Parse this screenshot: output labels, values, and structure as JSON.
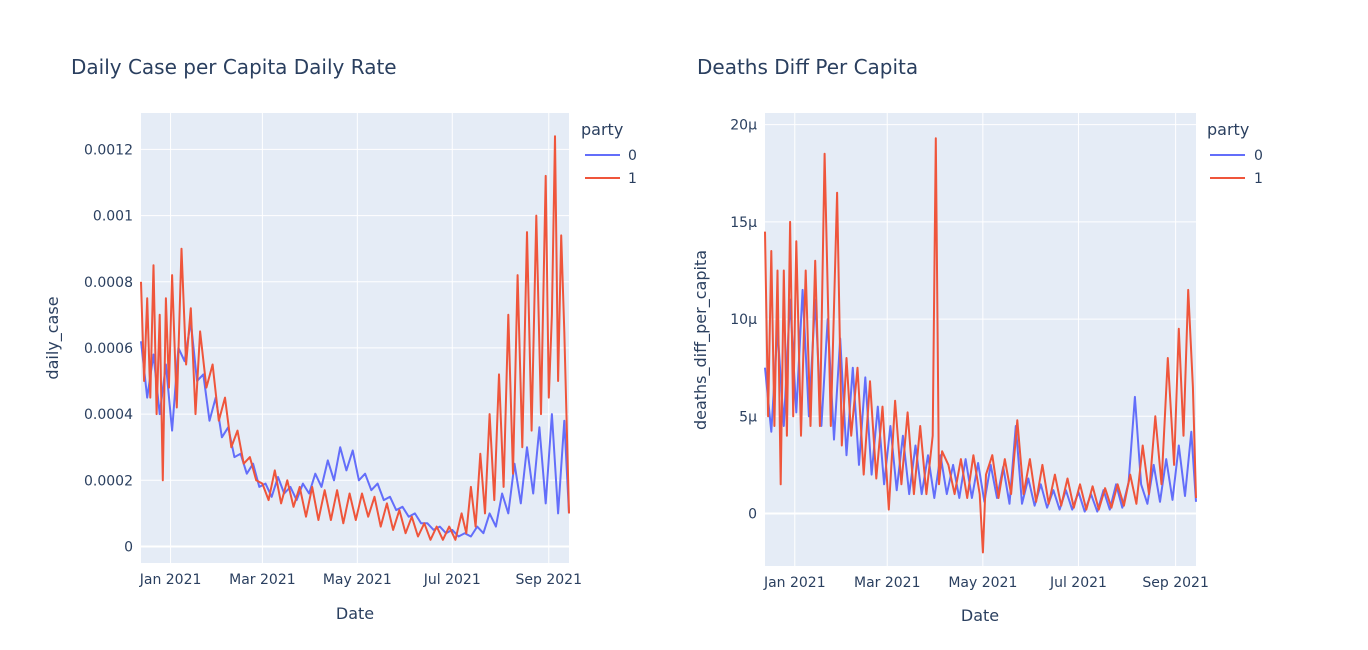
{
  "chart_data": [
    {
      "type": "line",
      "title": "Daily Case per Capita Daily Rate",
      "xlabel": "Date",
      "ylabel": "daily_case",
      "xlim": [
        "2020-12-13",
        "2021-09-14"
      ],
      "ylim": [
        -5e-05,
        0.00131
      ],
      "x_ticks": [
        {
          "date": "2021-01-01",
          "label": "Jan 2021"
        },
        {
          "date": "2021-03-01",
          "label": "Mar 2021"
        },
        {
          "date": "2021-05-01",
          "label": "May 2021"
        },
        {
          "date": "2021-07-01",
          "label": "Jul 2021"
        },
        {
          "date": "2021-09-01",
          "label": "Sep 2021"
        }
      ],
      "y_ticks": [
        {
          "value": 0,
          "label": "0"
        },
        {
          "value": 0.0002,
          "label": "0.0002"
        },
        {
          "value": 0.0004,
          "label": "0.0004"
        },
        {
          "value": 0.0006,
          "label": "0.0006"
        },
        {
          "value": 0.0008,
          "label": "0.0008"
        },
        {
          "value": 0.001,
          "label": "0.001"
        },
        {
          "value": 0.0012,
          "label": "0.0012"
        }
      ],
      "grid": true,
      "legend": {
        "title": "party",
        "position": "top-right"
      },
      "series": [
        {
          "name": "0",
          "color": "#636efa",
          "x": [
            "2020-12-13",
            "2020-12-17",
            "2020-12-21",
            "2020-12-25",
            "2020-12-29",
            "2021-01-02",
            "2021-01-06",
            "2021-01-10",
            "2021-01-14",
            "2021-01-18",
            "2021-01-22",
            "2021-01-26",
            "2021-01-30",
            "2021-02-03",
            "2021-02-07",
            "2021-02-11",
            "2021-02-15",
            "2021-02-19",
            "2021-02-23",
            "2021-02-27",
            "2021-03-03",
            "2021-03-07",
            "2021-03-11",
            "2021-03-15",
            "2021-03-19",
            "2021-03-23",
            "2021-03-27",
            "2021-03-31",
            "2021-04-04",
            "2021-04-08",
            "2021-04-12",
            "2021-04-16",
            "2021-04-20",
            "2021-04-24",
            "2021-04-28",
            "2021-05-02",
            "2021-05-06",
            "2021-05-10",
            "2021-05-14",
            "2021-05-18",
            "2021-05-22",
            "2021-05-26",
            "2021-05-30",
            "2021-06-03",
            "2021-06-07",
            "2021-06-11",
            "2021-06-15",
            "2021-06-19",
            "2021-06-23",
            "2021-06-27",
            "2021-07-01",
            "2021-07-05",
            "2021-07-09",
            "2021-07-13",
            "2021-07-17",
            "2021-07-21",
            "2021-07-25",
            "2021-07-29",
            "2021-08-02",
            "2021-08-06",
            "2021-08-10",
            "2021-08-14",
            "2021-08-18",
            "2021-08-22",
            "2021-08-26",
            "2021-08-30",
            "2021-09-03",
            "2021-09-07",
            "2021-09-11",
            "2021-09-14"
          ],
          "y": [
            0.00062,
            0.00045,
            0.00058,
            0.0004,
            0.00055,
            0.00035,
            0.0006,
            0.00056,
            0.00068,
            0.0005,
            0.00052,
            0.00038,
            0.00045,
            0.00033,
            0.00036,
            0.00027,
            0.00028,
            0.00022,
            0.00025,
            0.00018,
            0.00019,
            0.00015,
            0.00021,
            0.00016,
            0.00018,
            0.00014,
            0.00019,
            0.00016,
            0.00022,
            0.00018,
            0.00026,
            0.0002,
            0.0003,
            0.00023,
            0.00029,
            0.0002,
            0.00022,
            0.00017,
            0.00019,
            0.00014,
            0.00015,
            0.00011,
            0.00012,
            9e-05,
            0.0001,
            7e-05,
            7e-05,
            5e-05,
            6e-05,
            4e-05,
            5e-05,
            3e-05,
            4e-05,
            3e-05,
            6e-05,
            4e-05,
            0.0001,
            6e-05,
            0.00016,
            0.0001,
            0.00025,
            0.00013,
            0.0003,
            0.00016,
            0.00036,
            0.00013,
            0.0004,
            0.0001,
            0.00038,
            0.0001
          ]
        },
        {
          "name": "1",
          "color": "#ef553b",
          "x": [
            "2020-12-13",
            "2020-12-15",
            "2020-12-17",
            "2020-12-19",
            "2020-12-21",
            "2020-12-23",
            "2020-12-25",
            "2020-12-27",
            "2020-12-29",
            "2020-12-31",
            "2021-01-02",
            "2021-01-05",
            "2021-01-08",
            "2021-01-11",
            "2021-01-14",
            "2021-01-17",
            "2021-01-20",
            "2021-01-24",
            "2021-01-28",
            "2021-02-01",
            "2021-02-05",
            "2021-02-09",
            "2021-02-13",
            "2021-02-17",
            "2021-02-21",
            "2021-02-25",
            "2021-03-01",
            "2021-03-05",
            "2021-03-09",
            "2021-03-13",
            "2021-03-17",
            "2021-03-21",
            "2021-03-25",
            "2021-03-29",
            "2021-04-02",
            "2021-04-06",
            "2021-04-10",
            "2021-04-14",
            "2021-04-18",
            "2021-04-22",
            "2021-04-26",
            "2021-04-30",
            "2021-05-04",
            "2021-05-08",
            "2021-05-12",
            "2021-05-16",
            "2021-05-20",
            "2021-05-24",
            "2021-05-28",
            "2021-06-01",
            "2021-06-05",
            "2021-06-09",
            "2021-06-13",
            "2021-06-17",
            "2021-06-21",
            "2021-06-25",
            "2021-06-29",
            "2021-07-03",
            "2021-07-07",
            "2021-07-10",
            "2021-07-13",
            "2021-07-16",
            "2021-07-19",
            "2021-07-22",
            "2021-07-25",
            "2021-07-28",
            "2021-07-31",
            "2021-08-03",
            "2021-08-06",
            "2021-08-09",
            "2021-08-12",
            "2021-08-15",
            "2021-08-18",
            "2021-08-21",
            "2021-08-24",
            "2021-08-27",
            "2021-08-30",
            "2021-09-01",
            "2021-09-03",
            "2021-09-05",
            "2021-09-07",
            "2021-09-09",
            "2021-09-11",
            "2021-09-14"
          ],
          "y": [
            0.0008,
            0.0005,
            0.00075,
            0.00045,
            0.00085,
            0.0004,
            0.0007,
            0.0002,
            0.00075,
            0.00048,
            0.00082,
            0.00042,
            0.0009,
            0.00055,
            0.00072,
            0.0004,
            0.00065,
            0.00048,
            0.00055,
            0.00038,
            0.00045,
            0.0003,
            0.00035,
            0.00025,
            0.00027,
            0.0002,
            0.00019,
            0.00014,
            0.00023,
            0.00013,
            0.0002,
            0.00012,
            0.00018,
            9e-05,
            0.00018,
            8e-05,
            0.00017,
            8e-05,
            0.00017,
            7e-05,
            0.00016,
            8e-05,
            0.00016,
            9e-05,
            0.00015,
            6e-05,
            0.00013,
            5e-05,
            0.00011,
            4e-05,
            9e-05,
            3e-05,
            7e-05,
            2e-05,
            6e-05,
            2e-05,
            6e-05,
            2e-05,
            0.0001,
            4e-05,
            0.00018,
            6e-05,
            0.00028,
            0.0001,
            0.0004,
            0.00014,
            0.00052,
            0.00018,
            0.0007,
            0.00022,
            0.00082,
            0.0003,
            0.00095,
            0.00035,
            0.001,
            0.0004,
            0.00112,
            0.00045,
            0.0007,
            0.00124,
            0.0005,
            0.00094,
            0.00065,
            0.0001
          ]
        }
      ]
    },
    {
      "type": "line",
      "title": "Deaths Diff Per Capita",
      "xlabel": "Date",
      "ylabel": "deaths_diff_per_capita",
      "xlim": [
        "2020-12-13",
        "2021-09-14"
      ],
      "ylim": [
        -2.7e-06,
        2.06e-05
      ],
      "x_ticks": [
        {
          "date": "2021-01-01",
          "label": "Jan 2021"
        },
        {
          "date": "2021-03-01",
          "label": "Mar 2021"
        },
        {
          "date": "2021-05-01",
          "label": "May 2021"
        },
        {
          "date": "2021-07-01",
          "label": "Jul 2021"
        },
        {
          "date": "2021-09-01",
          "label": "Sep 2021"
        }
      ],
      "y_ticks": [
        {
          "value": 0,
          "label": "0"
        },
        {
          "value": 5e-06,
          "label": "5µ"
        },
        {
          "value": 1e-05,
          "label": "10µ"
        },
        {
          "value": 1.5e-05,
          "label": "15µ"
        },
        {
          "value": 2e-05,
          "label": "20µ"
        }
      ],
      "grid": true,
      "legend": {
        "title": "party",
        "position": "top-right"
      },
      "series": [
        {
          "name": "0",
          "color": "#636efa",
          "x": [
            "2020-12-13",
            "2020-12-17",
            "2020-12-21",
            "2020-12-25",
            "2020-12-29",
            "2021-01-02",
            "2021-01-06",
            "2021-01-10",
            "2021-01-14",
            "2021-01-18",
            "2021-01-22",
            "2021-01-26",
            "2021-01-30",
            "2021-02-03",
            "2021-02-07",
            "2021-02-11",
            "2021-02-15",
            "2021-02-19",
            "2021-02-23",
            "2021-02-27",
            "2021-03-03",
            "2021-03-07",
            "2021-03-11",
            "2021-03-15",
            "2021-03-19",
            "2021-03-23",
            "2021-03-27",
            "2021-03-31",
            "2021-04-04",
            "2021-04-08",
            "2021-04-12",
            "2021-04-16",
            "2021-04-20",
            "2021-04-24",
            "2021-04-28",
            "2021-05-02",
            "2021-05-06",
            "2021-05-10",
            "2021-05-14",
            "2021-05-18",
            "2021-05-22",
            "2021-05-26",
            "2021-05-30",
            "2021-06-03",
            "2021-06-07",
            "2021-06-11",
            "2021-06-15",
            "2021-06-19",
            "2021-06-23",
            "2021-06-27",
            "2021-07-01",
            "2021-07-05",
            "2021-07-09",
            "2021-07-13",
            "2021-07-17",
            "2021-07-21",
            "2021-07-25",
            "2021-07-29",
            "2021-08-02",
            "2021-08-06",
            "2021-08-10",
            "2021-08-14",
            "2021-08-18",
            "2021-08-22",
            "2021-08-26",
            "2021-08-30",
            "2021-09-03",
            "2021-09-07",
            "2021-09-11",
            "2021-09-14"
          ],
          "y": [
            7.5e-06,
            4.2e-06,
            9.5e-06,
            4.5e-06,
            1.1e-05,
            5.2e-06,
            1.15e-05,
            5e-06,
            1.1e-05,
            4.5e-06,
            1e-05,
            3.8e-06,
            9e-06,
            3e-06,
            7.5e-06,
            2.5e-06,
            7e-06,
            2e-06,
            5.5e-06,
            1.5e-06,
            4.5e-06,
            1.2e-06,
            4e-06,
            1e-06,
            3.5e-06,
            1e-06,
            3e-06,
            8e-07,
            3e-06,
            1e-06,
            2.5e-06,
            8e-07,
            2.8e-06,
            8e-07,
            2.6e-06,
            6e-07,
            2.5e-06,
            8e-07,
            2.4e-06,
            5e-07,
            4.5e-06,
            5e-07,
            1.8e-06,
            4e-07,
            1.5e-06,
            3e-07,
            1.2e-06,
            2e-07,
            1.2e-06,
            2e-07,
            1.1e-06,
            1e-07,
            1e-06,
            1e-07,
            1.2e-06,
            2e-07,
            1.5e-06,
            3e-07,
            1.6e-06,
            6e-06,
            1.5e-06,
            5e-07,
            2.5e-06,
            6e-07,
            2.8e-06,
            7e-07,
            3.5e-06,
            9e-07,
            4.2e-06,
            6e-07
          ]
        },
        {
          "name": "1",
          "color": "#ef553b",
          "x": [
            "2020-12-13",
            "2020-12-15",
            "2020-12-17",
            "2020-12-19",
            "2020-12-21",
            "2020-12-23",
            "2020-12-25",
            "2020-12-27",
            "2020-12-29",
            "2020-12-31",
            "2021-01-02",
            "2021-01-05",
            "2021-01-08",
            "2021-01-11",
            "2021-01-14",
            "2021-01-17",
            "2021-01-20",
            "2021-01-24",
            "2021-01-28",
            "2021-01-31",
            "2021-02-03",
            "2021-02-06",
            "2021-02-10",
            "2021-02-14",
            "2021-02-18",
            "2021-02-22",
            "2021-02-26",
            "2021-03-02",
            "2021-03-06",
            "2021-03-10",
            "2021-03-14",
            "2021-03-18",
            "2021-03-22",
            "2021-03-26",
            "2021-03-30",
            "2021-04-01",
            "2021-04-03",
            "2021-04-05",
            "2021-04-09",
            "2021-04-13",
            "2021-04-17",
            "2021-04-21",
            "2021-04-25",
            "2021-04-29",
            "2021-05-01",
            "2021-05-03",
            "2021-05-07",
            "2021-05-11",
            "2021-05-15",
            "2021-05-19",
            "2021-05-23",
            "2021-05-27",
            "2021-05-31",
            "2021-06-04",
            "2021-06-08",
            "2021-06-12",
            "2021-06-16",
            "2021-06-20",
            "2021-06-24",
            "2021-06-28",
            "2021-07-02",
            "2021-07-06",
            "2021-07-10",
            "2021-07-14",
            "2021-07-18",
            "2021-07-22",
            "2021-07-26",
            "2021-07-30",
            "2021-08-03",
            "2021-08-07",
            "2021-08-11",
            "2021-08-15",
            "2021-08-19",
            "2021-08-23",
            "2021-08-27",
            "2021-08-31",
            "2021-09-03",
            "2021-09-06",
            "2021-09-09",
            "2021-09-12",
            "2021-09-14"
          ],
          "y": [
            1.45e-05,
            5e-06,
            1.35e-05,
            4.5e-06,
            1.25e-05,
            1.5e-06,
            1.25e-05,
            4e-06,
            1.5e-05,
            5e-06,
            1.4e-05,
            4e-06,
            1.25e-05,
            4.5e-06,
            1.3e-05,
            4.5e-06,
            1.85e-05,
            4.5e-06,
            1.65e-05,
            3.5e-06,
            8e-06,
            4e-06,
            7.5e-06,
            2e-06,
            6.8e-06,
            1.8e-06,
            5.5e-06,
            2e-07,
            5.8e-06,
            1.5e-06,
            5.2e-06,
            1e-06,
            4.5e-06,
            1e-06,
            4e-06,
            1.93e-05,
            1.5e-06,
            3.2e-06,
            2.5e-06,
            1e-06,
            2.8e-06,
            8e-07,
            3e-06,
            1e-06,
            -2e-06,
            2e-06,
            3e-06,
            8e-07,
            2.8e-06,
            1e-06,
            4.8e-06,
            1e-06,
            2.8e-06,
            6e-07,
            2.5e-06,
            5e-07,
            2e-06,
            4e-07,
            1.8e-06,
            3e-07,
            1.5e-06,
            2e-07,
            1.4e-06,
            2e-07,
            1.3e-06,
            3e-07,
            1.5e-06,
            4e-07,
            2e-06,
            5e-07,
            3.5e-06,
            1e-06,
            5e-06,
            1.5e-06,
            8e-06,
            2.5e-06,
            9.5e-06,
            4e-06,
            1.15e-05,
            6.5e-06,
            8e-07
          ]
        }
      ]
    }
  ]
}
